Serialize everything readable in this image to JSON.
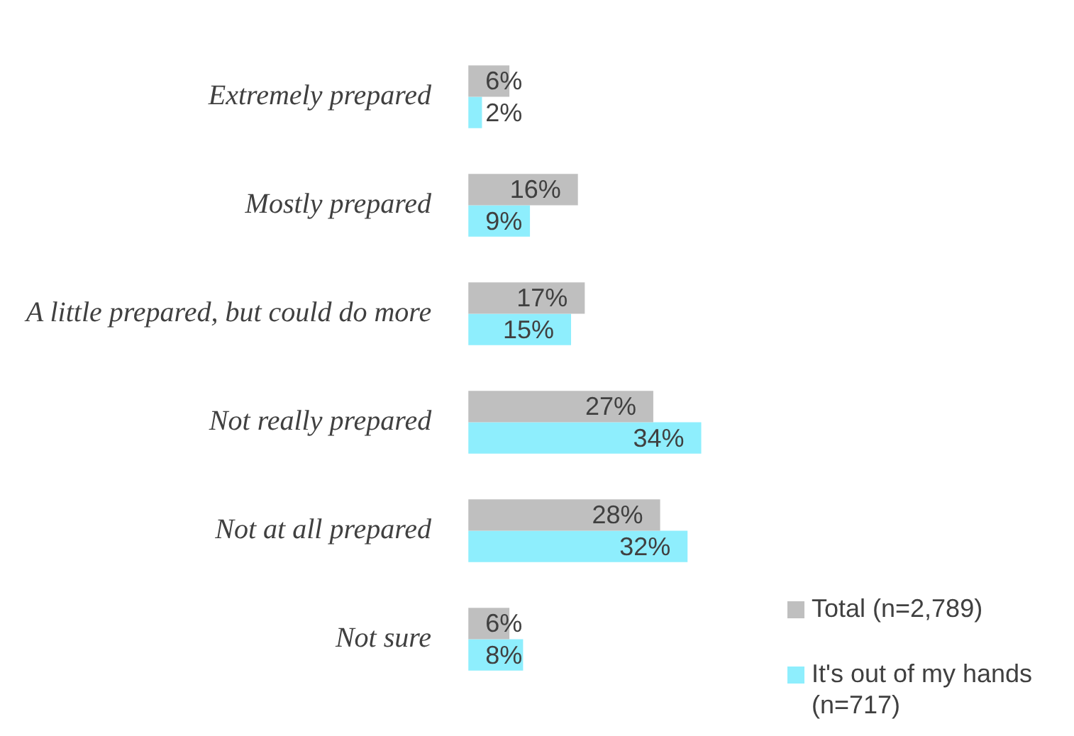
{
  "chart_data": {
    "type": "bar",
    "orientation": "horizontal",
    "categories": [
      "Extremely prepared",
      "Mostly prepared",
      "A little prepared, but could do more",
      "Not really prepared",
      "Not at all prepared",
      "Not sure"
    ],
    "series": [
      {
        "name": "Total (n=2,789)",
        "color": "#bfbfbf",
        "values": [
          6,
          16,
          17,
          27,
          28,
          6
        ],
        "value_labels": [
          "6%",
          "16%",
          "17%",
          "27%",
          "28%",
          "6%"
        ]
      },
      {
        "name": "It's out of my hands (n=717)",
        "color": "#8eeefd",
        "values": [
          2,
          9,
          15,
          34,
          32,
          8
        ],
        "value_labels": [
          "2%",
          "9%",
          "15%",
          "34%",
          "32%",
          "8%"
        ]
      }
    ],
    "legend": "bottom right",
    "tick_labels": "y"
  }
}
